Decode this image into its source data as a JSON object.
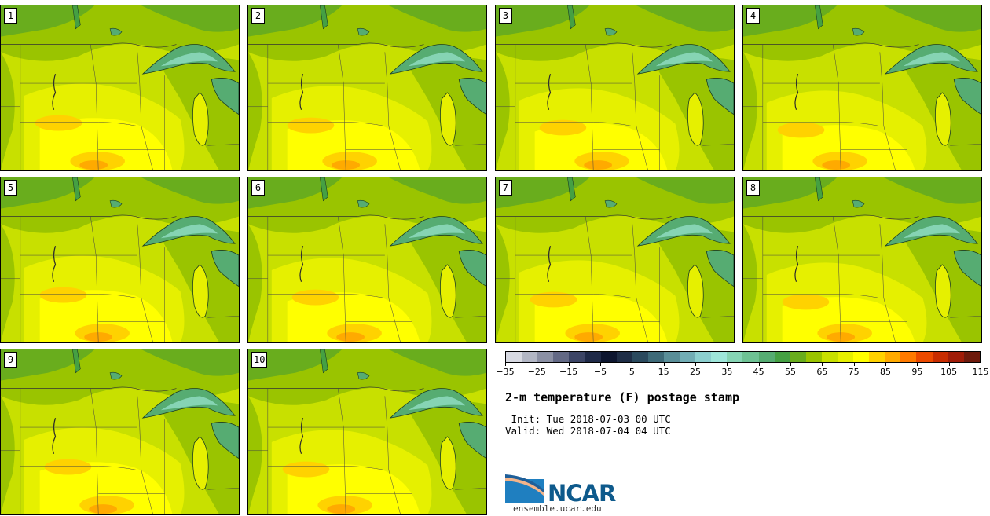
{
  "stamps": [
    {
      "label": "1"
    },
    {
      "label": "2"
    },
    {
      "label": "3"
    },
    {
      "label": "4"
    },
    {
      "label": "5"
    },
    {
      "label": "6"
    },
    {
      "label": "7"
    },
    {
      "label": "8"
    },
    {
      "label": "9"
    },
    {
      "label": "10"
    }
  ],
  "colorbar": {
    "colors": [
      "#d7d9e2",
      "#b2b6c4",
      "#8b90a4",
      "#636985",
      "#3c4566",
      "#1f2a48",
      "#0d1630",
      "#1e2d46",
      "#2b4a5e",
      "#3e6a78",
      "#5a8e98",
      "#72adb5",
      "#8ccfcf",
      "#9ee6da",
      "#86d4b4",
      "#6ec294",
      "#56ac72",
      "#45a043",
      "#69ad1d",
      "#9ac400",
      "#c8e000",
      "#e6f000",
      "#ffff00",
      "#ffd200",
      "#ffaa00",
      "#ff7a00",
      "#ec4a00",
      "#c82c00",
      "#a01c08",
      "#6e1a0c"
    ],
    "tick_labels": [
      "−35",
      "−25",
      "−15",
      "−5",
      "5",
      "15",
      "25",
      "35",
      "45",
      "55",
      "65",
      "75",
      "85",
      "95",
      "105",
      "115"
    ]
  },
  "title": "2-m temperature (F) postage stamp",
  "init_line": " Init: Tue 2018-07-03 00 UTC",
  "valid_line": "Valid: Wed 2018-07-04 04 UTC",
  "logo_text": "NCAR",
  "website": "ensemble.ucar.edu"
}
